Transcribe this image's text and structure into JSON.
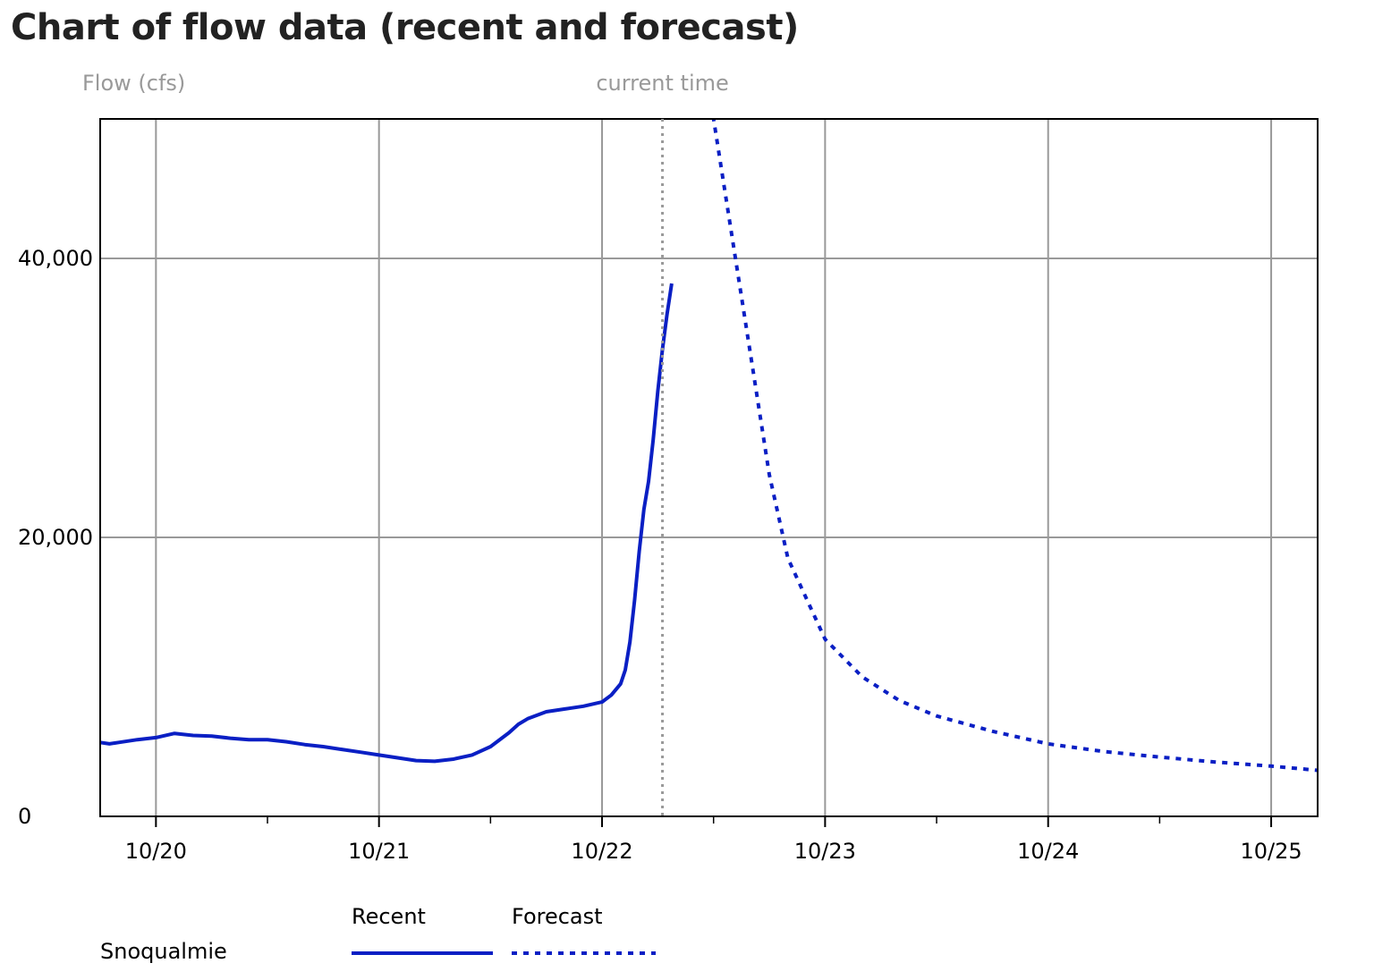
{
  "title": "Chart of flow data (recent and forecast)",
  "chart_data": {
    "type": "line",
    "ylabel": "Flow (cfs)",
    "current_time_label": "current time",
    "current_time": "10/22 06:30",
    "ylim": [
      0,
      50000
    ],
    "xlim": [
      "10/19 18:00",
      "10/25 05:00"
    ],
    "y_ticks": [
      {
        "value": 0,
        "label": "0"
      },
      {
        "value": 20000,
        "label": "20,000"
      },
      {
        "value": 40000,
        "label": "40,000"
      }
    ],
    "x_ticks": [
      {
        "value": "10/20",
        "label": "10/20"
      },
      {
        "value": "10/21",
        "label": "10/21"
      },
      {
        "value": "10/22",
        "label": "10/22"
      },
      {
        "value": "10/23",
        "label": "10/23"
      },
      {
        "value": "10/24",
        "label": "10/24"
      },
      {
        "value": "10/25",
        "label": "10/25"
      }
    ],
    "grid": true,
    "station": "Snoqualmie",
    "legend": [
      {
        "label": "Recent",
        "style": "solid"
      },
      {
        "label": "Forecast",
        "style": "dotted"
      }
    ],
    "series_color": "#0a1fc4",
    "series": [
      {
        "name": "Recent",
        "style": "solid",
        "points": [
          [
            "10/19 18:00",
            5300
          ],
          [
            "10/19 19:00",
            5200
          ],
          [
            "10/19 20:00",
            5300
          ],
          [
            "10/19 22:00",
            5500
          ],
          [
            "10/20 00:00",
            5650
          ],
          [
            "10/20 02:00",
            5950
          ],
          [
            "10/20 04:00",
            5800
          ],
          [
            "10/20 06:00",
            5750
          ],
          [
            "10/20 08:00",
            5600
          ],
          [
            "10/20 10:00",
            5500
          ],
          [
            "10/20 12:00",
            5500
          ],
          [
            "10/20 14:00",
            5350
          ],
          [
            "10/20 16:00",
            5150
          ],
          [
            "10/20 18:00",
            5000
          ],
          [
            "10/20 20:00",
            4800
          ],
          [
            "10/20 22:00",
            4600
          ],
          [
            "10/21 00:00",
            4400
          ],
          [
            "10/21 02:00",
            4200
          ],
          [
            "10/21 04:00",
            4000
          ],
          [
            "10/21 06:00",
            3950
          ],
          [
            "10/21 08:00",
            4100
          ],
          [
            "10/21 10:00",
            4400
          ],
          [
            "10/21 12:00",
            5000
          ],
          [
            "10/21 14:00",
            6000
          ],
          [
            "10/21 15:00",
            6600
          ],
          [
            "10/21 16:00",
            7000
          ],
          [
            "10/21 18:00",
            7500
          ],
          [
            "10/21 20:00",
            7700
          ],
          [
            "10/21 22:00",
            7900
          ],
          [
            "10/22 00:00",
            8200
          ],
          [
            "10/22 01:00",
            8700
          ],
          [
            "10/22 02:00",
            9500
          ],
          [
            "10/22 02:30",
            10500
          ],
          [
            "10/22 03:00",
            12500
          ],
          [
            "10/22 03:30",
            15500
          ],
          [
            "10/22 04:00",
            19000
          ],
          [
            "10/22 04:30",
            22000
          ],
          [
            "10/22 05:00",
            24000
          ],
          [
            "10/22 05:30",
            27000
          ],
          [
            "10/22 06:00",
            30500
          ],
          [
            "10/22 06:30",
            33500
          ],
          [
            "10/22 07:00",
            36000
          ],
          [
            "10/22 07:30",
            38200
          ]
        ]
      },
      {
        "name": "Forecast",
        "style": "dotted",
        "points": [
          [
            "10/22 07:30",
            58000
          ],
          [
            "10/22 12:00",
            50000
          ],
          [
            "10/22 14:00",
            41500
          ],
          [
            "10/22 16:00",
            33000
          ],
          [
            "10/22 18:00",
            24500
          ],
          [
            "10/22 20:00",
            18500
          ],
          [
            "10/23 00:00",
            12700
          ],
          [
            "10/23 04:00",
            10000
          ],
          [
            "10/23 08:00",
            8300
          ],
          [
            "10/23 12:00",
            7200
          ],
          [
            "10/23 18:00",
            6100
          ],
          [
            "10/24 00:00",
            5200
          ],
          [
            "10/24 06:00",
            4650
          ],
          [
            "10/24 12:00",
            4250
          ],
          [
            "10/24 18:00",
            3900
          ],
          [
            "10/25 00:00",
            3600
          ],
          [
            "10/25 05:00",
            3300
          ]
        ]
      }
    ]
  }
}
